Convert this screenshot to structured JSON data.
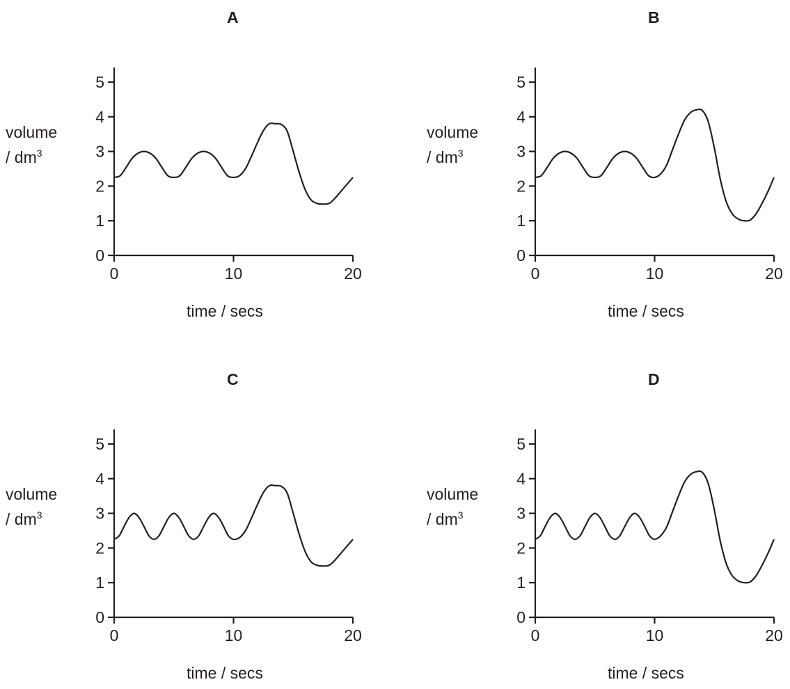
{
  "chart_data": [
    {
      "panel": "A",
      "type": "line",
      "title": "A",
      "xlabel": "time / secs",
      "ylabel": "volume / dm3",
      "ylabel_line1": "volume",
      "ylabel_line2": "/ dm",
      "ylabel_sup": "3",
      "xlim": [
        0,
        20
      ],
      "ylim": [
        0,
        5
      ],
      "xticks": [
        0,
        10,
        20
      ],
      "yticks": [
        0,
        1,
        2,
        3,
        4,
        5
      ],
      "grid": false,
      "legend": "none",
      "series": [
        {
          "x": [
            0,
            0.5,
            1,
            1.5,
            2,
            2.5,
            3,
            3.5,
            4,
            4.5,
            5,
            5.5,
            6,
            6.5,
            7,
            7.5,
            8,
            8.5,
            9,
            9.5,
            10,
            10.5,
            11,
            11.5,
            12,
            12.5,
            13,
            13.5,
            14,
            14.5,
            15,
            15.5,
            16,
            16.5,
            17,
            17.5,
            18,
            18.5,
            19,
            19.5,
            20
          ],
          "y": [
            2.25,
            2.3,
            2.54,
            2.8,
            2.95,
            3.0,
            2.95,
            2.8,
            2.54,
            2.3,
            2.25,
            2.3,
            2.54,
            2.8,
            2.95,
            3.0,
            2.95,
            2.8,
            2.54,
            2.3,
            2.25,
            2.3,
            2.5,
            2.86,
            3.25,
            3.6,
            3.8,
            3.8,
            3.78,
            3.58,
            3.0,
            2.4,
            1.9,
            1.6,
            1.5,
            1.48,
            1.5,
            1.65,
            1.85,
            2.05,
            2.25
          ]
        }
      ]
    },
    {
      "panel": "B",
      "type": "line",
      "title": "B",
      "xlabel": "time / secs",
      "ylabel": "volume / dm3",
      "ylabel_line1": "volume",
      "ylabel_line2": "/ dm",
      "ylabel_sup": "3",
      "xlim": [
        0,
        20
      ],
      "ylim": [
        0,
        5
      ],
      "xticks": [
        0,
        10,
        20
      ],
      "yticks": [
        0,
        1,
        2,
        3,
        4,
        5
      ],
      "grid": false,
      "legend": "none",
      "series": [
        {
          "x": [
            0,
            0.5,
            1,
            1.5,
            2,
            2.5,
            3,
            3.5,
            4,
            4.5,
            5,
            5.5,
            6,
            6.5,
            7,
            7.5,
            8,
            8.5,
            9,
            9.5,
            10,
            10.5,
            11,
            11.5,
            12,
            12.5,
            13,
            13.5,
            14,
            14.5,
            15,
            15.5,
            16,
            16.5,
            17,
            17.5,
            18,
            18.5,
            19,
            19.5,
            20
          ],
          "y": [
            2.25,
            2.3,
            2.54,
            2.8,
            2.95,
            3.0,
            2.95,
            2.8,
            2.54,
            2.3,
            2.25,
            2.3,
            2.54,
            2.8,
            2.95,
            3.0,
            2.95,
            2.8,
            2.54,
            2.3,
            2.25,
            2.35,
            2.6,
            3.05,
            3.5,
            3.9,
            4.12,
            4.2,
            4.18,
            3.85,
            3.1,
            2.2,
            1.55,
            1.2,
            1.05,
            1.0,
            1.02,
            1.2,
            1.5,
            1.85,
            2.25
          ]
        }
      ]
    },
    {
      "panel": "C",
      "type": "line",
      "title": "C",
      "xlabel": "time / secs",
      "ylabel": "volume / dm3",
      "ylabel_line1": "volume",
      "ylabel_line2": "/ dm",
      "ylabel_sup": "3",
      "xlim": [
        0,
        20
      ],
      "ylim": [
        0,
        5
      ],
      "xticks": [
        0,
        10,
        20
      ],
      "yticks": [
        0,
        1,
        2,
        3,
        4,
        5
      ],
      "grid": false,
      "legend": "none",
      "series": [
        {
          "x": [
            0,
            0.42,
            0.83,
            1.25,
            1.67,
            2.08,
            2.5,
            2.92,
            3.33,
            3.75,
            4.17,
            4.58,
            5.0,
            5.42,
            5.83,
            6.25,
            6.67,
            7.08,
            7.5,
            7.92,
            8.33,
            8.75,
            9.17,
            9.58,
            10,
            10.5,
            11,
            11.5,
            12,
            12.5,
            13,
            13.5,
            14,
            14.5,
            15,
            15.5,
            16,
            16.5,
            17,
            17.5,
            18,
            18.5,
            19,
            19.5,
            20
          ],
          "y": [
            2.25,
            2.35,
            2.62,
            2.88,
            3.0,
            2.88,
            2.62,
            2.35,
            2.25,
            2.35,
            2.62,
            2.88,
            3.0,
            2.88,
            2.62,
            2.35,
            2.25,
            2.35,
            2.62,
            2.88,
            3.0,
            2.88,
            2.62,
            2.35,
            2.25,
            2.3,
            2.5,
            2.86,
            3.25,
            3.6,
            3.8,
            3.8,
            3.78,
            3.58,
            3.0,
            2.4,
            1.9,
            1.6,
            1.5,
            1.48,
            1.5,
            1.65,
            1.85,
            2.05,
            2.25
          ]
        }
      ]
    },
    {
      "panel": "D",
      "type": "line",
      "title": "D",
      "xlabel": "time / secs",
      "ylabel": "volume / dm3",
      "ylabel_line1": "volume",
      "ylabel_line2": "/ dm",
      "ylabel_sup": "3",
      "xlim": [
        0,
        20
      ],
      "ylim": [
        0,
        5
      ],
      "xticks": [
        0,
        10,
        20
      ],
      "yticks": [
        0,
        1,
        2,
        3,
        4,
        5
      ],
      "grid": false,
      "legend": "none",
      "series": [
        {
          "x": [
            0,
            0.42,
            0.83,
            1.25,
            1.67,
            2.08,
            2.5,
            2.92,
            3.33,
            3.75,
            4.17,
            4.58,
            5.0,
            5.42,
            5.83,
            6.25,
            6.67,
            7.08,
            7.5,
            7.92,
            8.33,
            8.75,
            9.17,
            9.58,
            10,
            10.5,
            11,
            11.5,
            12,
            12.5,
            13,
            13.5,
            14,
            14.5,
            15,
            15.5,
            16,
            16.5,
            17,
            17.5,
            18,
            18.5,
            19,
            19.5,
            20
          ],
          "y": [
            2.25,
            2.35,
            2.62,
            2.88,
            3.0,
            2.88,
            2.62,
            2.35,
            2.25,
            2.35,
            2.62,
            2.88,
            3.0,
            2.88,
            2.62,
            2.35,
            2.25,
            2.35,
            2.62,
            2.88,
            3.0,
            2.88,
            2.62,
            2.35,
            2.25,
            2.35,
            2.6,
            3.05,
            3.5,
            3.9,
            4.12,
            4.2,
            4.18,
            3.85,
            3.1,
            2.2,
            1.55,
            1.2,
            1.05,
            1.0,
            1.02,
            1.2,
            1.5,
            1.85,
            2.25
          ]
        }
      ]
    }
  ]
}
